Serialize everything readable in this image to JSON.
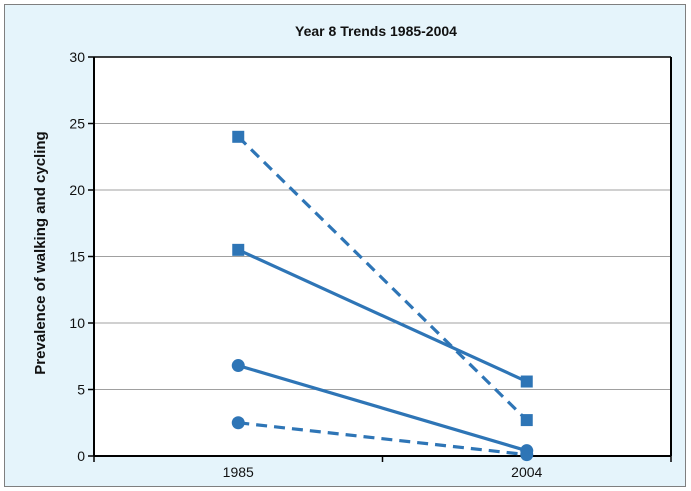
{
  "chart_data": {
    "type": "line",
    "title": "Year 8  Trends 1985-2004",
    "xlabel": "",
    "ylabel": "Prevalence of walking and cycling",
    "categories": [
      "1985",
      "2004"
    ],
    "ylim": [
      0,
      30
    ],
    "yticks": [
      0,
      5,
      10,
      15,
      20,
      25,
      30
    ],
    "grid": true,
    "series": [
      {
        "values": [
          24.0,
          2.7
        ],
        "marker": "square",
        "line_style": "dashed",
        "color": "#2e75b6"
      },
      {
        "values": [
          15.5,
          5.6
        ],
        "marker": "square",
        "line_style": "solid",
        "color": "#2e75b6"
      },
      {
        "values": [
          6.8,
          0.4
        ],
        "marker": "circle",
        "line_style": "solid",
        "color": "#2e75b6"
      },
      {
        "values": [
          2.5,
          0.1
        ],
        "marker": "circle",
        "line_style": "dashed",
        "color": "#2e75b6"
      }
    ]
  },
  "colors": {
    "background": "#e5f4fb",
    "plot_area": "#ffffff",
    "gridline": "#a0a0a0",
    "axis": "#000000"
  }
}
